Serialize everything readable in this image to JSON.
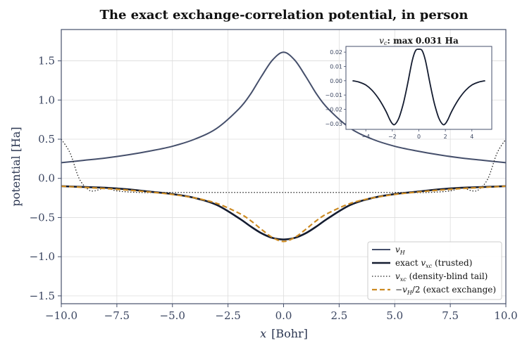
{
  "chart_data": [
    {
      "type": "line",
      "title": "The exact exchange-correlation potential, in person",
      "xlabel": "x  [Bohr]",
      "xlabel_var": "x",
      "xlabel_unit": "[Bohr]",
      "ylabel": "potential  [Ha]",
      "xlim": [
        -10,
        10
      ],
      "ylim": [
        -1.6,
        1.9
      ],
      "xticks": [
        -10.0,
        -7.5,
        -5.0,
        -2.5,
        0.0,
        2.5,
        5.0,
        7.5,
        10.0
      ],
      "xtick_labels": [
        "−10.0",
        "−7.5",
        "−5.0",
        "−2.5",
        "0.0",
        "2.5",
        "5.0",
        "7.5",
        "10.0"
      ],
      "yticks": [
        -1.5,
        -1.0,
        -0.5,
        0.0,
        0.5,
        1.0,
        1.5
      ],
      "ytick_labels": [
        "−1.5",
        "−1.0",
        "−0.5",
        "0.0",
        "0.5",
        "1.0",
        "1.5"
      ],
      "grid": true,
      "legend_position": "lower-right",
      "colors": {
        "vH": "#454f6b",
        "vxc": "#141c30",
        "tail": "#222222",
        "exchange": "#cc8a22"
      },
      "series": [
        {
          "name": "v_H",
          "key": "vH",
          "style": "solid",
          "x": [
            -10,
            -9,
            -8,
            -7,
            -6,
            -5,
            -4,
            -3,
            -2,
            -1.5,
            -1,
            -0.5,
            0,
            0.5,
            1,
            1.5,
            2,
            3,
            4,
            5,
            6,
            7,
            8,
            9,
            10
          ],
          "y": [
            0.2,
            0.23,
            0.26,
            0.3,
            0.35,
            0.41,
            0.5,
            0.64,
            0.89,
            1.07,
            1.3,
            1.51,
            1.61,
            1.51,
            1.3,
            1.07,
            0.89,
            0.64,
            0.5,
            0.41,
            0.35,
            0.3,
            0.26,
            0.23,
            0.2
          ]
        },
        {
          "name": "exact v_xc (trusted)",
          "key": "vxc",
          "style": "solid-thick",
          "x": [
            -10,
            -9,
            -8,
            -7,
            -6,
            -5,
            -4,
            -3,
            -2,
            -1.5,
            -1,
            -0.5,
            0,
            0.5,
            1,
            1.5,
            2,
            3,
            4,
            5,
            6,
            7,
            8,
            9,
            10
          ],
          "y": [
            -0.1,
            -0.11,
            -0.12,
            -0.14,
            -0.17,
            -0.2,
            -0.25,
            -0.34,
            -0.51,
            -0.61,
            -0.7,
            -0.76,
            -0.78,
            -0.76,
            -0.7,
            -0.61,
            -0.51,
            -0.34,
            -0.25,
            -0.2,
            -0.17,
            -0.14,
            -0.12,
            -0.11,
            -0.1
          ]
        },
        {
          "name": "v_xc (density-blind tail)",
          "key": "tail",
          "style": "dotted",
          "x": [
            -10,
            -9.6,
            -9.2,
            -8.8,
            -8.5,
            -8.0,
            -7.5,
            -6.5,
            -5.5,
            -5.0,
            5.0,
            5.5,
            6.5,
            7.5,
            8.0,
            8.5,
            8.8,
            9.2,
            9.6,
            10
          ],
          "y": [
            0.5,
            0.32,
            0.0,
            -0.14,
            -0.16,
            -0.12,
            -0.16,
            -0.18,
            -0.18,
            -0.18,
            -0.18,
            -0.18,
            -0.18,
            -0.16,
            -0.12,
            -0.16,
            -0.14,
            0.0,
            0.32,
            0.5
          ]
        },
        {
          "name": "−v_H/2 (exact exchange)",
          "key": "exchange",
          "style": "dashed",
          "x": [
            -10,
            -9,
            -8,
            -7,
            -6,
            -5,
            -4,
            -3,
            -2,
            -1.5,
            -1,
            -0.5,
            0,
            0.5,
            1,
            1.5,
            2,
            3,
            4,
            5,
            6,
            7,
            8,
            9,
            10
          ],
          "y": [
            -0.1,
            -0.115,
            -0.13,
            -0.15,
            -0.175,
            -0.205,
            -0.25,
            -0.32,
            -0.445,
            -0.535,
            -0.65,
            -0.755,
            -0.805,
            -0.755,
            -0.65,
            -0.535,
            -0.445,
            -0.32,
            -0.25,
            -0.205,
            -0.175,
            -0.15,
            -0.13,
            -0.115,
            -0.1
          ]
        }
      ]
    },
    {
      "type": "line",
      "title": "v_c: max 0.031 Ha",
      "title_var": "v",
      "title_sub": "c",
      "title_rest": ": max 0.031 Ha",
      "xlim": [
        -5.5,
        5.5
      ],
      "ylim": [
        -0.034,
        0.024
      ],
      "xticks": [
        -4,
        -2,
        0,
        2,
        4
      ],
      "xtick_labels": [
        "−4",
        "−2",
        "0",
        "2",
        "4"
      ],
      "yticks": [
        0.02,
        0.01,
        0.0,
        -0.01,
        -0.02,
        -0.03
      ],
      "ytick_labels": [
        "0.02",
        "0.01",
        "0.00",
        "−0.01",
        "−0.02",
        "−0.03"
      ],
      "grid": false,
      "colors": {
        "line": "#141c30"
      },
      "series": [
        {
          "name": "",
          "x": [
            -5,
            -4.5,
            -4,
            -3.5,
            -3,
            -2.5,
            -2.2,
            -2,
            -1.8,
            -1.5,
            -1.2,
            -1,
            -0.8,
            -0.5,
            -0.25,
            0,
            0.25,
            0.5,
            0.8,
            1,
            1.2,
            1.5,
            1.8,
            2,
            2.2,
            2.5,
            3,
            3.5,
            4,
            4.5,
            5
          ],
          "y": [
            0.0,
            -0.001,
            -0.003,
            -0.007,
            -0.013,
            -0.021,
            -0.027,
            -0.03,
            -0.0305,
            -0.026,
            -0.017,
            -0.009,
            0.0,
            0.014,
            0.021,
            0.022,
            0.021,
            0.014,
            0.0,
            -0.009,
            -0.017,
            -0.026,
            -0.0305,
            -0.03,
            -0.027,
            -0.021,
            -0.013,
            -0.007,
            -0.003,
            -0.001,
            0.0
          ]
        }
      ]
    }
  ],
  "legend": {
    "items": [
      {
        "var": "v",
        "sub": "H",
        "text": "",
        "key": "vH"
      },
      {
        "var": "v",
        "sub": "xc",
        "prefix": "exact ",
        "text": " (trusted)",
        "key": "vxc"
      },
      {
        "var": "v",
        "sub": "xc",
        "text": " (density-blind tail)",
        "key": "tail"
      },
      {
        "var": "v",
        "sub": "H",
        "prefix": "−",
        "text": "/2 (exact exchange)",
        "key": "exchange"
      }
    ]
  }
}
